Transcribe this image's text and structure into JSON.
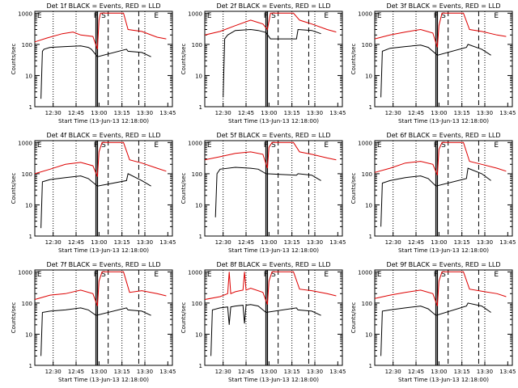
{
  "figure": {
    "xlabel": "Start Time (13-Jun-13 12:18:00)",
    "ylabel": "Counts/sec",
    "xticks": [
      "12:30",
      "12:45",
      "13:00",
      "13:15",
      "13:30",
      "13:45"
    ],
    "yticks": [
      "1",
      "10",
      "100",
      "1000"
    ],
    "colors": {
      "events": "#000000",
      "lld": "#dd0000"
    }
  },
  "chart_data": [
    {
      "type": "line",
      "title": "Det 1f BLACK = Events, RED = LLD",
      "markers": [
        "E",
        "F",
        "S",
        "E"
      ],
      "xscale": "time (minutes)",
      "yscale": "log",
      "ylim": [
        1,
        1000
      ],
      "xlim": [
        0,
        90
      ],
      "series": [
        {
          "name": "Events",
          "x": [
            4,
            5,
            6,
            10,
            20,
            30,
            35,
            37,
            41,
            60,
            61,
            70,
            76
          ],
          "y": [
            1.8,
            60,
            70,
            80,
            85,
            90,
            80,
            70,
            40,
            70,
            60,
            55,
            40
          ]
        },
        {
          "name": "LLD",
          "x": [
            0,
            8,
            18,
            25,
            30,
            38,
            41,
            42,
            43,
            58,
            61,
            70,
            80,
            86
          ],
          "y": [
            120,
            160,
            220,
            250,
            200,
            180,
            70,
            600,
            1000,
            1000,
            300,
            260,
            170,
            150
          ]
        }
      ]
    },
    {
      "type": "line",
      "title": "Det 2f BLACK = Events, RED = LLD",
      "markers": [
        "E",
        "F",
        "S",
        "E"
      ],
      "xscale": "time (minutes)",
      "yscale": "log",
      "ylim": [
        1,
        1000
      ],
      "xlim": [
        0,
        90
      ],
      "series": [
        {
          "name": "Events",
          "x": [
            12,
            13,
            15,
            20,
            30,
            35,
            40,
            43,
            60,
            61,
            70,
            76
          ],
          "y": [
            2,
            150,
            200,
            280,
            300,
            280,
            240,
            150,
            150,
            300,
            280,
            220
          ]
        },
        {
          "name": "LLD",
          "x": [
            0,
            10,
            20,
            30,
            35,
            38,
            41,
            43,
            45,
            58,
            62,
            70,
            80,
            86
          ],
          "y": [
            200,
            260,
            400,
            600,
            500,
            450,
            300,
            1000,
            1000,
            1000,
            600,
            450,
            300,
            250
          ]
        }
      ]
    },
    {
      "type": "line",
      "title": "Det 3f BLACK = Events, RED = LLD",
      "markers": [
        "E",
        "F",
        "S",
        "E"
      ],
      "xscale": "time (minutes)",
      "yscale": "log",
      "ylim": [
        1,
        1000
      ],
      "xlim": [
        0,
        90
      ],
      "series": [
        {
          "name": "Events",
          "x": [
            4,
            5,
            10,
            20,
            30,
            35,
            41,
            60,
            61,
            70,
            76
          ],
          "y": [
            2,
            60,
            75,
            85,
            95,
            80,
            45,
            80,
            100,
            70,
            45
          ]
        },
        {
          "name": "LLD",
          "x": [
            0,
            10,
            20,
            30,
            38,
            41,
            42,
            44,
            58,
            62,
            70,
            80,
            86
          ],
          "y": [
            150,
            200,
            250,
            300,
            230,
            80,
            400,
            1000,
            1000,
            300,
            260,
            200,
            180
          ]
        }
      ]
    },
    {
      "type": "line",
      "title": "Det 4f BLACK = Events, RED = LLD",
      "markers": [
        "E",
        "F",
        "S",
        "E"
      ],
      "xscale": "time (minutes)",
      "yscale": "log",
      "ylim": [
        1,
        1000
      ],
      "xlim": [
        0,
        90
      ],
      "series": [
        {
          "name": "Events",
          "x": [
            4,
            5,
            10,
            20,
            30,
            35,
            41,
            60,
            61,
            70,
            76
          ],
          "y": [
            1.8,
            55,
            65,
            75,
            85,
            70,
            40,
            60,
            100,
            60,
            40
          ]
        },
        {
          "name": "LLD",
          "x": [
            0,
            10,
            20,
            30,
            38,
            41,
            42,
            44,
            58,
            62,
            70,
            80,
            86
          ],
          "y": [
            100,
            140,
            200,
            230,
            180,
            80,
            500,
            1000,
            1000,
            280,
            220,
            150,
            120
          ]
        }
      ]
    },
    {
      "type": "line",
      "title": "Det 5f BLACK = Events, RED = LLD",
      "markers": [
        "E",
        "F",
        "S",
        "E"
      ],
      "xscale": "time (minutes)",
      "yscale": "log",
      "ylim": [
        1,
        1000
      ],
      "xlim": [
        0,
        90
      ],
      "series": [
        {
          "name": "Events",
          "x": [
            7,
            8,
            10,
            20,
            30,
            35,
            40,
            60,
            61,
            70,
            76
          ],
          "y": [
            4,
            100,
            140,
            160,
            150,
            140,
            100,
            90,
            100,
            90,
            60
          ]
        },
        {
          "name": "LLD",
          "x": [
            0,
            10,
            20,
            30,
            38,
            41,
            42,
            44,
            58,
            62,
            70,
            80,
            86
          ],
          "y": [
            280,
            350,
            450,
            500,
            420,
            150,
            700,
            1000,
            1000,
            500,
            420,
            320,
            280
          ]
        }
      ]
    },
    {
      "type": "line",
      "title": "Det 6f BLACK = Events, RED = LLD",
      "markers": [
        "E",
        "F",
        "S",
        "E"
      ],
      "xscale": "time (minutes)",
      "yscale": "log",
      "ylim": [
        1,
        1000
      ],
      "xlim": [
        0,
        90
      ],
      "series": [
        {
          "name": "Events",
          "x": [
            4,
            5,
            10,
            20,
            30,
            35,
            40,
            60,
            61,
            70,
            76
          ],
          "y": [
            2,
            50,
            60,
            75,
            85,
            70,
            40,
            70,
            150,
            100,
            60
          ]
        },
        {
          "name": "LLD",
          "x": [
            0,
            10,
            20,
            30,
            38,
            41,
            42,
            44,
            58,
            62,
            70,
            80,
            86
          ],
          "y": [
            110,
            150,
            220,
            250,
            200,
            90,
            600,
            1000,
            1000,
            250,
            200,
            150,
            120
          ]
        }
      ]
    },
    {
      "type": "line",
      "title": "Det 7f BLACK = Events, RED = LLD",
      "markers": [
        "E",
        "F",
        "S",
        "E"
      ],
      "xscale": "time (minutes)",
      "yscale": "log",
      "ylim": [
        1,
        1000
      ],
      "xlim": [
        0,
        90
      ],
      "series": [
        {
          "name": "Events",
          "x": [
            4,
            5,
            10,
            20,
            30,
            35,
            40,
            60,
            61,
            70,
            76
          ],
          "y": [
            2,
            50,
            55,
            60,
            70,
            60,
            40,
            70,
            60,
            55,
            40
          ]
        },
        {
          "name": "LLD",
          "x": [
            0,
            10,
            20,
            30,
            38,
            41,
            42,
            44,
            58,
            62,
            70,
            80,
            86
          ],
          "y": [
            130,
            180,
            200,
            260,
            200,
            80,
            500,
            1000,
            1000,
            220,
            250,
            200,
            170
          ]
        }
      ]
    },
    {
      "type": "line",
      "title": "Det 8f BLACK = Events, RED = LLD",
      "markers": [
        "E",
        "F",
        "S",
        "E"
      ],
      "xscale": "time (minutes)",
      "yscale": "log",
      "ylim": [
        1,
        1000
      ],
      "xlim": [
        0,
        90
      ],
      "series": [
        {
          "name": "Events",
          "x": [
            4,
            5,
            10,
            15,
            16,
            17,
            20,
            25,
            26,
            27,
            30,
            35,
            40,
            60,
            61,
            70,
            76
          ],
          "y": [
            2,
            60,
            70,
            75,
            20,
            75,
            80,
            85,
            22,
            85,
            90,
            80,
            50,
            70,
            60,
            55,
            40
          ]
        },
        {
          "name": "LLD",
          "x": [
            0,
            10,
            15,
            16,
            17,
            20,
            25,
            26,
            27,
            30,
            38,
            41,
            42,
            44,
            58,
            62,
            70,
            80,
            86
          ],
          "y": [
            130,
            160,
            200,
            1000,
            200,
            230,
            260,
            1000,
            260,
            300,
            220,
            90,
            500,
            1000,
            1000,
            280,
            250,
            200,
            170
          ]
        }
      ]
    },
    {
      "type": "line",
      "title": "Det 9f BLACK = Events, RED = LLD",
      "markers": [
        "E",
        "F",
        "S",
        "E"
      ],
      "xscale": "time (minutes)",
      "yscale": "log",
      "ylim": [
        1,
        1000
      ],
      "xlim": [
        0,
        90
      ],
      "series": [
        {
          "name": "Events",
          "x": [
            4,
            5,
            10,
            20,
            30,
            35,
            40,
            60,
            61,
            70,
            76
          ],
          "y": [
            2,
            55,
            60,
            70,
            80,
            65,
            40,
            80,
            100,
            80,
            50
          ]
        },
        {
          "name": "LLD",
          "x": [
            0,
            10,
            20,
            30,
            38,
            41,
            42,
            44,
            58,
            62,
            70,
            80,
            86
          ],
          "y": [
            140,
            180,
            220,
            260,
            200,
            80,
            500,
            1000,
            1000,
            280,
            240,
            200,
            160
          ]
        }
      ]
    }
  ]
}
